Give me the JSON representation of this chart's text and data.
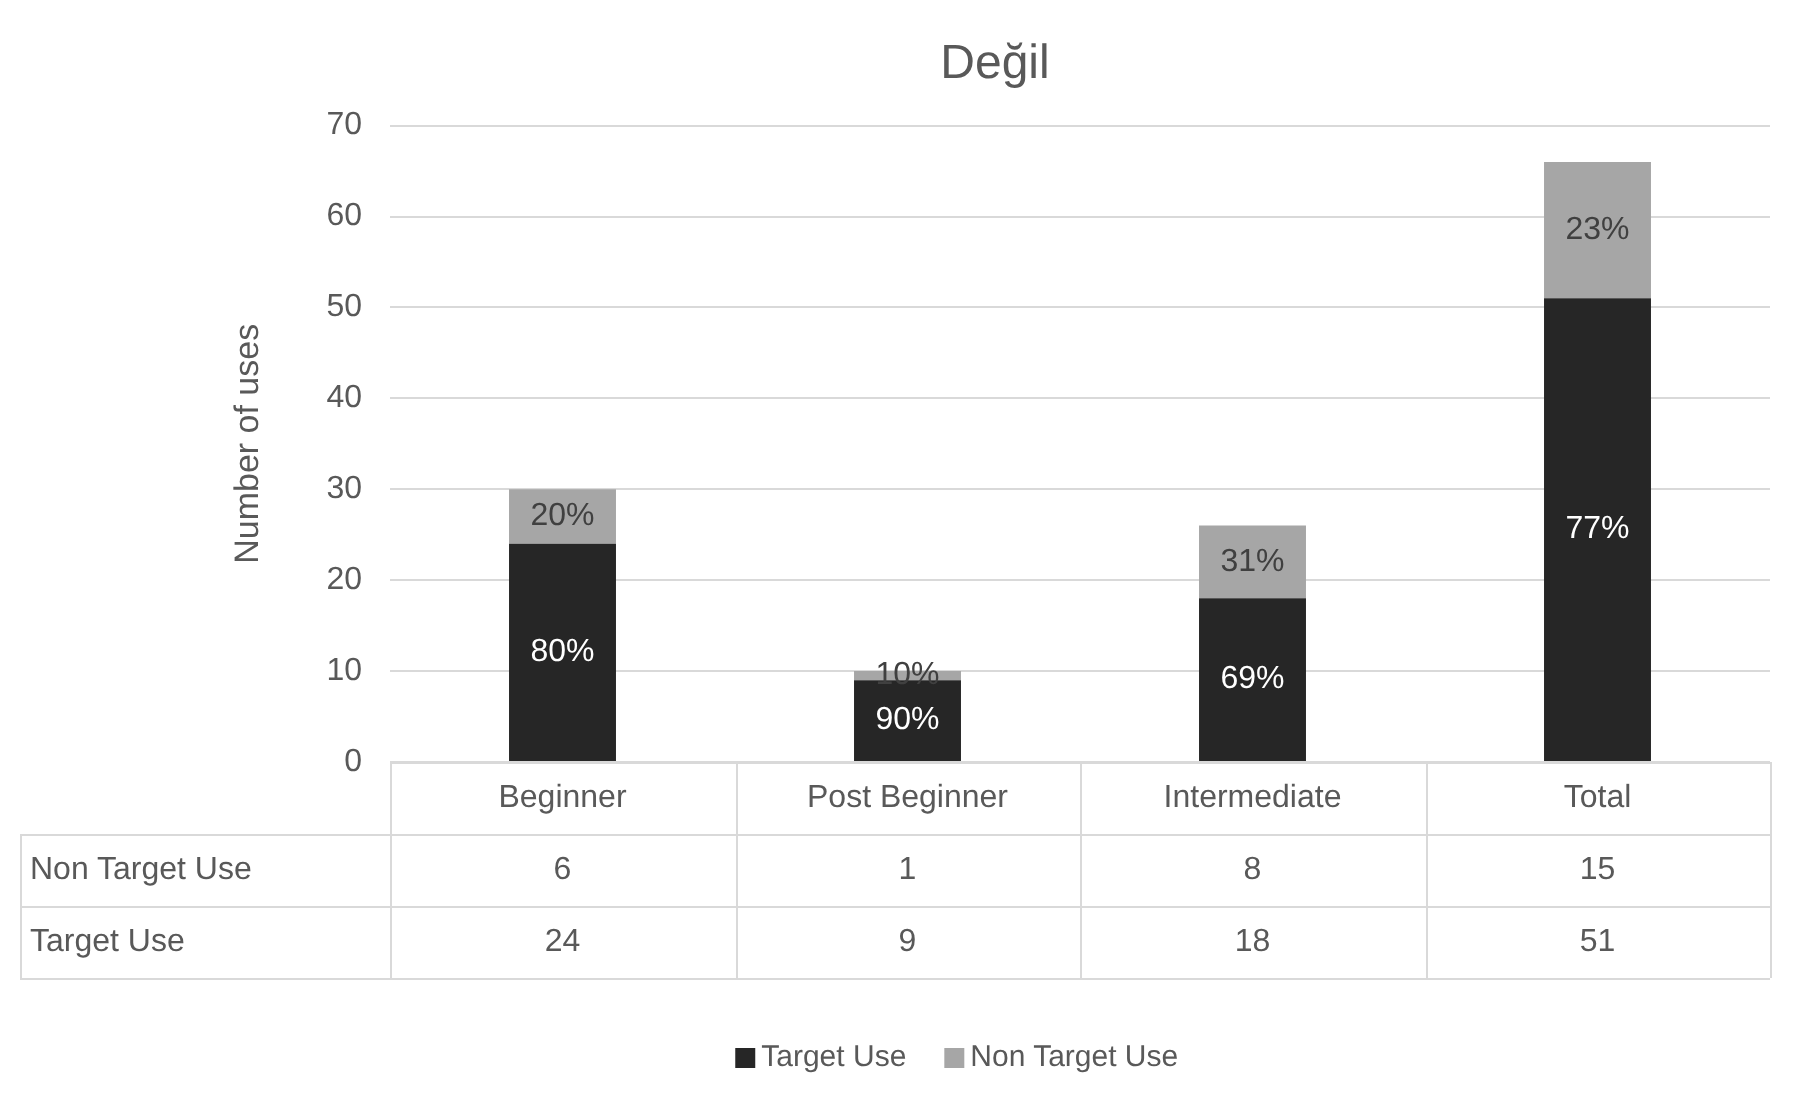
{
  "chart_data": {
    "type": "bar",
    "title": "Değil",
    "ylabel": "Number of uses",
    "categories": [
      "Beginner",
      "Post Beginner",
      "Intermediate",
      "Total"
    ],
    "stacked": true,
    "series": [
      {
        "name": "Target Use",
        "color": "#262626",
        "values": [
          24,
          9,
          18,
          51
        ]
      },
      {
        "name": "Non Target Use",
        "color": "#a6a6a6",
        "values": [
          6,
          1,
          8,
          15
        ]
      }
    ],
    "annotations": [
      "80%",
      "20%",
      "90%",
      "10%",
      "69%",
      "31%",
      "77%",
      "23%"
    ],
    "ylim": [
      0,
      70
    ],
    "yticks": [
      0,
      10,
      20,
      30,
      40,
      50,
      60,
      70
    ],
    "grid": "y",
    "legend": "bottom",
    "data_labels": true
  }
}
